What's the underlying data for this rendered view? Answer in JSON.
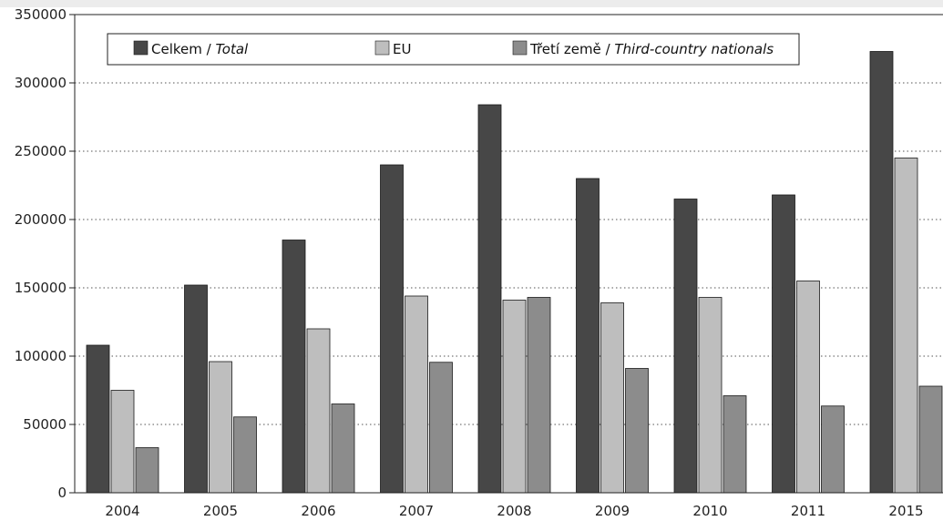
{
  "chart_data": {
    "type": "bar",
    "categories": [
      "2004",
      "2005",
      "2006",
      "2007",
      "2008",
      "2009",
      "2010",
      "2011",
      "2015"
    ],
    "series": [
      {
        "name": "Celkem / Total",
        "name_main": "Celkem",
        "name_italic": "Total",
        "color": "#474747",
        "values": [
          108000,
          152000,
          185000,
          240000,
          284000,
          230000,
          215000,
          218000,
          323000
        ]
      },
      {
        "name": "EU",
        "name_main": "EU",
        "name_italic": "",
        "color": "#bebebe",
        "values": [
          75000,
          96000,
          120000,
          144000,
          141000,
          139000,
          143000,
          155000,
          245000
        ]
      },
      {
        "name": "Třetí země / Third-country nationals",
        "name_main": "Třetí země",
        "name_italic": "Third-country nationals",
        "color": "#8c8c8c",
        "values": [
          33000,
          55500,
          65000,
          95500,
          143000,
          91000,
          71000,
          63500,
          78000
        ]
      }
    ],
    "ylim": [
      0,
      350000
    ],
    "yticks": [
      "0",
      "50000",
      "100000",
      "150000",
      "200000",
      "250000",
      "300000",
      "350000"
    ],
    "ytick_values": [
      0,
      50000,
      100000,
      150000,
      200000,
      250000,
      300000,
      350000
    ],
    "grid": "horizontal-dotted",
    "legend": "top"
  }
}
